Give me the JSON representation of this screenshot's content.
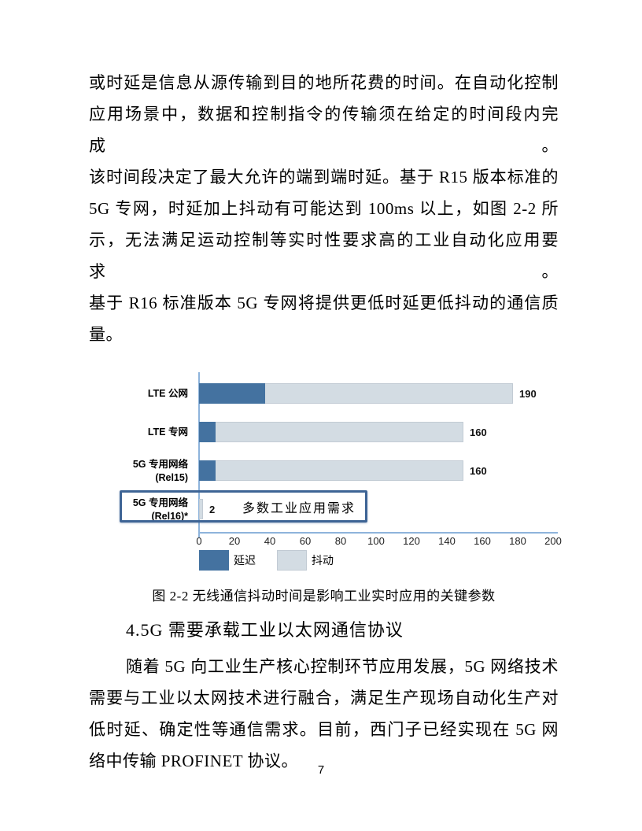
{
  "page": {
    "number": "7"
  },
  "body": {
    "paragraph1_lines": [
      "或时延是信息从源传输到目的地所花费的时间。在自动化控制",
      "应用场景中，数据和控制指令的传输须在给定的时间段内完成。",
      "该时间段决定了最大允许的端到端时延。基于 R15 版本标准的",
      "5G 专网，时延加上抖动有可能达到 100ms 以上，如图 2-2 所",
      "示，无法满足运动控制等实时性要求高的工业自动化应用要求。",
      "基于 R16 标准版本 5G 专网将提供更低时延更低抖动的通信质",
      "量。"
    ],
    "section_heading": "4.5G 需要承载工业以太网通信协议",
    "paragraph2_lines": [
      "随着 5G 向工业生产核心控制环节应用发展，5G 网络技术",
      "需要与工业以太网技术进行融合，满足生产现场自动化生产对",
      "低时延、确定性等通信需求。目前，西门子已经实现在 5G 网",
      "络中传输 PROFINET 协议。"
    ]
  },
  "figure": {
    "caption": "图 2-2 无线通信抖动时间是影响工业实时应用的关键参数",
    "annotation": "多数工业应用需求",
    "category_lines": [
      [
        "LTE 公网",
        ""
      ],
      [
        "LTE 专网",
        ""
      ],
      [
        "5G 专用网络",
        "(Rel15)"
      ],
      [
        "5G 专用网络",
        "(Rel16)*"
      ]
    ]
  },
  "chart_data": {
    "type": "bar",
    "orientation": "horizontal",
    "title": "",
    "categories": [
      "LTE 公网",
      "LTE 专网",
      "5G 专用网络(Rel15)",
      "5G 专用网络(Rel16)*"
    ],
    "series": [
      {
        "name": "延迟",
        "color": "#4472A0",
        "values": [
          40,
          10,
          10,
          0
        ]
      },
      {
        "name": "抖动",
        "color": "#D3DCE3",
        "values": [
          150,
          150,
          150,
          2
        ]
      }
    ],
    "totals": [
      190,
      160,
      160,
      2
    ],
    "total_labels": [
      "190",
      "160",
      "160",
      "2"
    ],
    "xlim": [
      0,
      200
    ],
    "xticks": [
      0,
      20,
      40,
      60,
      80,
      100,
      120,
      140,
      160,
      180,
      200
    ],
    "grid": false,
    "legend_position": "bottom-left",
    "annotation": "多数工业应用需求",
    "annotation_target": "5G 专用网络(Rel16)*"
  }
}
